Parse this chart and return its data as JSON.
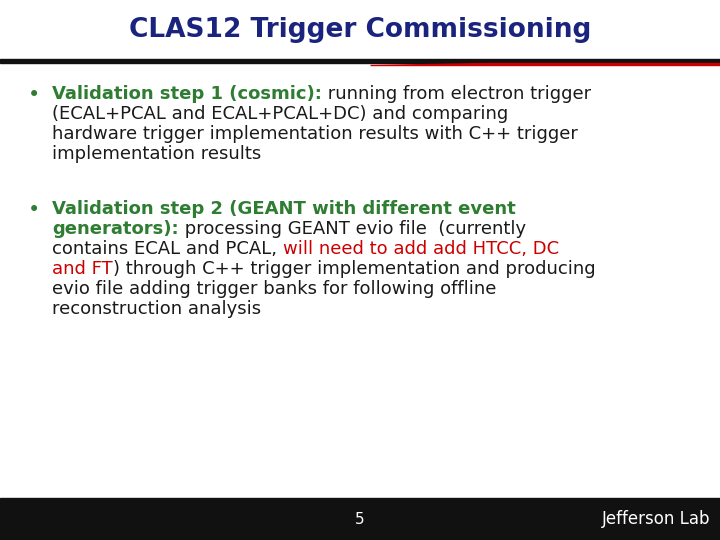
{
  "title": "CLAS12 Trigger Commissioning",
  "title_color": "#1a237e",
  "title_fontsize": 19,
  "bg_color": "#ffffff",
  "dark_line_color": "#111111",
  "red_accent_color": "#cc0000",
  "green_color": "#2e7d32",
  "black_color": "#1a1a1a",
  "red_color": "#cc0000",
  "page_number": "5",
  "footer_bg": "#111111",
  "footer_text_color": "#ffffff",
  "jlab_text": "Jefferson Lab",
  "jlab_color": "#ffffff",
  "body_fontsize": 13.0,
  "bullet_fontsize": 15,
  "title_bg": "#ffffff"
}
